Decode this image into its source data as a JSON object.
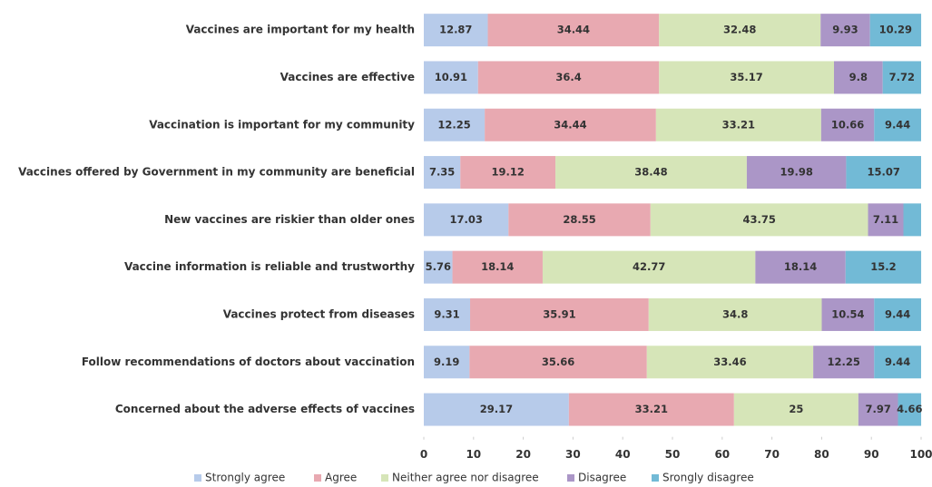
{
  "chart_data": {
    "type": "stacked_bar",
    "orientation": "horizontal",
    "categories": [
      "Vaccines are important for my health",
      "Vaccines are effective",
      "Vaccination is important for my community",
      "Vaccines offered by Government in my community are beneficial",
      "New vaccines are riskier than older ones",
      "Vaccine information is reliable and trustworthy",
      "Vaccines protect from diseases",
      "Follow recommendations of doctors about vaccination",
      "Concerned about the adverse effects of vaccines"
    ],
    "series": [
      {
        "name": "Strongly agree",
        "color": "#b7cbea",
        "values": [
          12.87,
          10.91,
          12.25,
          7.35,
          17.03,
          5.76,
          9.31,
          9.19,
          29.17
        ]
      },
      {
        "name": "Agree",
        "color": "#e8a9b1",
        "values": [
          34.44,
          36.4,
          34.44,
          19.12,
          28.55,
          18.14,
          35.91,
          35.66,
          33.21
        ]
      },
      {
        "name": "Neither agree nor disagree",
        "color": "#d6e5b8",
        "values": [
          32.48,
          35.17,
          33.21,
          38.48,
          43.75,
          42.77,
          34.8,
          33.46,
          25
        ]
      },
      {
        "name": "Disagree",
        "color": "#ab96c7",
        "values": [
          9.93,
          9.8,
          10.66,
          19.98,
          7.11,
          18.14,
          10.54,
          12.25,
          7.97
        ]
      },
      {
        "name": "Srongly disagree",
        "color": "#72bad6",
        "values": [
          10.29,
          7.72,
          9.44,
          15.07,
          3.56,
          15.2,
          9.44,
          9.44,
          4.66
        ],
        "value_labels": [
          "10.29",
          "7.72",
          "9.44",
          "15.07",
          null,
          "15.2",
          "9.44",
          "9.44",
          "4.66"
        ]
      }
    ],
    "xlim": [
      0,
      100
    ],
    "xticks": [
      0,
      10,
      20,
      30,
      40,
      50,
      60,
      70,
      80,
      90,
      100
    ],
    "legend": "bottom"
  }
}
